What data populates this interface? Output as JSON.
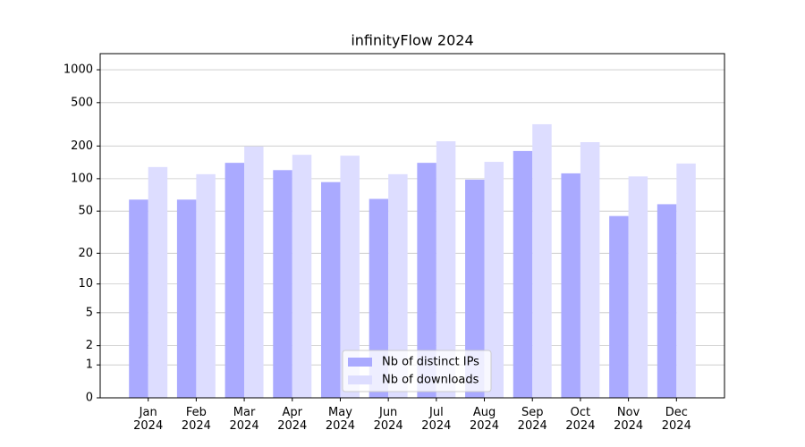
{
  "chart_data": {
    "type": "bar",
    "title": "infinityFlow 2024",
    "categories": [
      "Jan\n2024",
      "Feb\n2024",
      "Mar\n2024",
      "Apr\n2024",
      "May\n2024",
      "Jun\n2024",
      "Jul\n2024",
      "Aug\n2024",
      "Sep\n2024",
      "Oct\n2024",
      "Nov\n2024",
      "Dec\n2024"
    ],
    "series": [
      {
        "name": "Nb of distinct IPs",
        "color": "#aaaaff",
        "values": [
          64,
          64,
          140,
          120,
          93,
          65,
          140,
          98,
          180,
          112,
          45,
          58
        ]
      },
      {
        "name": "Nb of downloads",
        "color": "#ddddff",
        "values": [
          128,
          110,
          198,
          166,
          163,
          110,
          221,
          143,
          317,
          217,
          105,
          138
        ]
      }
    ],
    "yscale": "log1p",
    "ylim": [
      0,
      1405
    ],
    "yticks": [
      0,
      1,
      2,
      5,
      10,
      20,
      50,
      100,
      200,
      500,
      1000
    ],
    "grid": true,
    "legend": "lower center"
  }
}
